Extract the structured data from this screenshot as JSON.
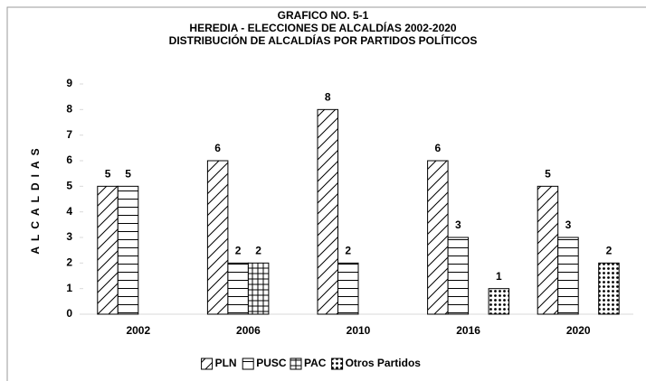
{
  "chart_data": {
    "type": "bar",
    "title": [
      "GRAFICO NO. 5-1",
      "HEREDIA - ELECCIONES DE ALCALDÍAS 2002-2020",
      "DISTRIBUCIÓN DE ALCALDÍAS POR PARTIDOS POLÍTICOS"
    ],
    "y_label": "ALCALDIAS",
    "categories": [
      "2002",
      "2006",
      "2010",
      "2016",
      "2020"
    ],
    "series": [
      {
        "name": "PLN",
        "pattern": "diagonal",
        "color": "#000000",
        "values": [
          5,
          6,
          8,
          6,
          5
        ]
      },
      {
        "name": "PUSC",
        "pattern": "horizontal",
        "color": "#000000",
        "values": [
          5,
          2,
          2,
          3,
          3
        ]
      },
      {
        "name": "PAC",
        "pattern": "grid",
        "color": "#000000",
        "values": [
          null,
          2,
          null,
          null,
          null
        ]
      },
      {
        "name": "Otros Partidos",
        "pattern": "dots",
        "color": "#000000",
        "values": [
          null,
          null,
          null,
          1,
          2
        ]
      }
    ],
    "ylim": [
      0,
      9
    ],
    "yticks": [
      0,
      1,
      2,
      3,
      4,
      5,
      6,
      7,
      8,
      9
    ],
    "grid": false,
    "legend": "bottom"
  }
}
